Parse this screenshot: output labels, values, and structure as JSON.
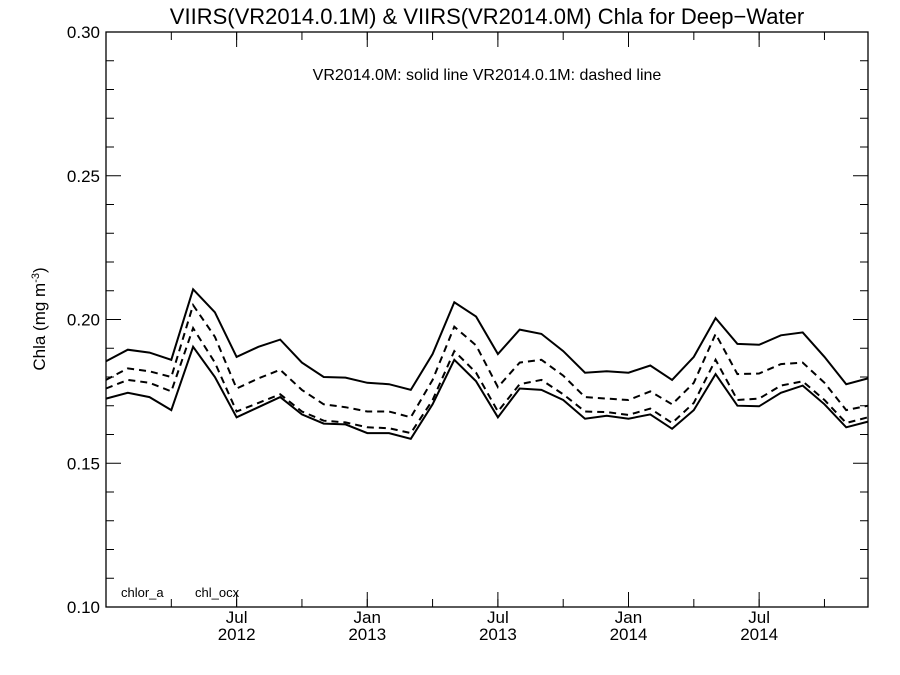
{
  "chart_data": {
    "type": "line",
    "title": "VIIRS(VR2014.0.1M) & VIIRS(VR2014.0M)  Chla for Deep−Water",
    "annotation": "VR2014.0M: solid line   VR2014.0.1M: dashed line",
    "ylabel": "Chla (mg m",
    "ylabel_sup": "-3",
    "ylabel_close": ")",
    "ylim": [
      0.1,
      0.3
    ],
    "y_ticks": [
      0.1,
      0.15,
      0.2,
      0.25,
      0.3
    ],
    "y_tick_labels": [
      "0.10",
      "0.15",
      "0.20",
      "0.25",
      "0.30"
    ],
    "x": [
      "2012-01",
      "2012-02",
      "2012-03",
      "2012-04",
      "2012-05",
      "2012-06",
      "2012-07",
      "2012-08",
      "2012-09",
      "2012-10",
      "2012-11",
      "2012-12",
      "2013-01",
      "2013-02",
      "2013-03",
      "2013-04",
      "2013-05",
      "2013-06",
      "2013-07",
      "2013-08",
      "2013-09",
      "2013-10",
      "2013-11",
      "2013-12",
      "2014-01",
      "2014-02",
      "2014-03",
      "2014-04",
      "2014-05",
      "2014-06",
      "2014-07",
      "2014-08",
      "2014-09",
      "2014-10",
      "2014-11",
      "2014-12"
    ],
    "x_ticks": [
      {
        "at": "2012-07",
        "month": "Jul",
        "year": "2012"
      },
      {
        "at": "2013-01",
        "month": "Jan",
        "year": "2013"
      },
      {
        "at": "2013-07",
        "month": "Jul",
        "year": "2013"
      },
      {
        "at": "2014-01",
        "month": "Jan",
        "year": "2014"
      },
      {
        "at": "2014-07",
        "month": "Jul",
        "year": "2014"
      }
    ],
    "series": [
      {
        "name": "chlor_a",
        "style": "solid",
        "values": [
          0.1855,
          0.1895,
          0.1885,
          0.186,
          0.2105,
          0.2025,
          0.187,
          0.1905,
          0.193,
          0.185,
          0.18,
          0.1798,
          0.178,
          0.1775,
          0.1755,
          0.188,
          0.206,
          0.201,
          0.188,
          0.1965,
          0.195,
          0.189,
          0.1815,
          0.182,
          0.1815,
          0.184,
          0.179,
          0.187,
          0.2005,
          0.1915,
          0.1912,
          0.1945,
          0.1955,
          0.187,
          0.1775,
          0.1795
        ]
      },
      {
        "name": "chlor_a",
        "style": "dashed",
        "values": [
          0.179,
          0.183,
          0.182,
          0.18,
          0.205,
          0.194,
          0.176,
          0.1795,
          0.1825,
          0.1755,
          0.1705,
          0.1695,
          0.168,
          0.168,
          0.166,
          0.179,
          0.1975,
          0.191,
          0.1765,
          0.185,
          0.186,
          0.1805,
          0.173,
          0.1725,
          0.172,
          0.175,
          0.1705,
          0.178,
          0.195,
          0.181,
          0.1812,
          0.1845,
          0.185,
          0.178,
          0.1685,
          0.17
        ]
      },
      {
        "name": "chl_ocx",
        "style": "dashed",
        "values": [
          0.176,
          0.179,
          0.178,
          0.175,
          0.197,
          0.185,
          0.168,
          0.171,
          0.174,
          0.168,
          0.1648,
          0.1642,
          0.1625,
          0.1622,
          0.1605,
          0.172,
          0.189,
          0.1815,
          0.168,
          0.1775,
          0.179,
          0.174,
          0.168,
          0.1678,
          0.1668,
          0.169,
          0.164,
          0.171,
          0.186,
          0.172,
          0.1725,
          0.177,
          0.1785,
          0.172,
          0.164,
          0.166
        ]
      },
      {
        "name": "chl_ocx",
        "style": "solid",
        "values": [
          0.1725,
          0.1745,
          0.173,
          0.1685,
          0.1905,
          0.18,
          0.166,
          0.1695,
          0.173,
          0.167,
          0.1638,
          0.1635,
          0.1605,
          0.1605,
          0.1585,
          0.1705,
          0.186,
          0.1785,
          0.166,
          0.176,
          0.1755,
          0.172,
          0.1655,
          0.1665,
          0.1655,
          0.167,
          0.162,
          0.1685,
          0.181,
          0.17,
          0.1698,
          0.1745,
          0.177,
          0.1705,
          0.1625,
          0.1645
        ]
      }
    ],
    "legend_labels": [
      "chlor_a",
      "chl_ocx"
    ],
    "grid": false
  }
}
